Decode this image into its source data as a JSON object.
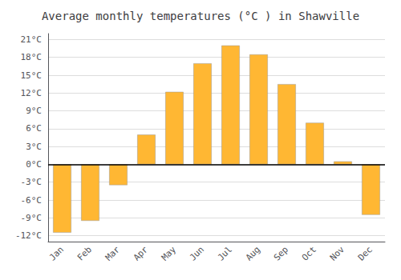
{
  "chart_data": {
    "type": "bar",
    "title": "Average monthly temperatures (°C ) in Shawville",
    "categories": [
      "Jan",
      "Feb",
      "Mar",
      "Apr",
      "May",
      "Jun",
      "Jul",
      "Aug",
      "Sep",
      "Oct",
      "Nov",
      "Dec"
    ],
    "values": [
      -11.5,
      -9.5,
      -3.5,
      5.0,
      12.2,
      17.0,
      20.0,
      18.5,
      13.5,
      7.0,
      0.5,
      -8.5
    ],
    "color": "#FFB733",
    "ylim": [
      -13,
      22
    ],
    "yticks": [
      {
        "value": -12,
        "label": "-12°C"
      },
      {
        "value": -9,
        "label": "-9°C"
      },
      {
        "value": -6,
        "label": "-6°C"
      },
      {
        "value": -3,
        "label": "-3°C"
      },
      {
        "value": 0,
        "label": "0°C"
      },
      {
        "value": 3,
        "label": "3°C"
      },
      {
        "value": 6,
        "label": "6°C"
      },
      {
        "value": 9,
        "label": "9°C"
      },
      {
        "value": 12,
        "label": "12°C"
      },
      {
        "value": 15,
        "label": "15°C"
      },
      {
        "value": 18,
        "label": "18°C"
      },
      {
        "value": 21,
        "label": "21°C"
      }
    ],
    "grid": true
  }
}
